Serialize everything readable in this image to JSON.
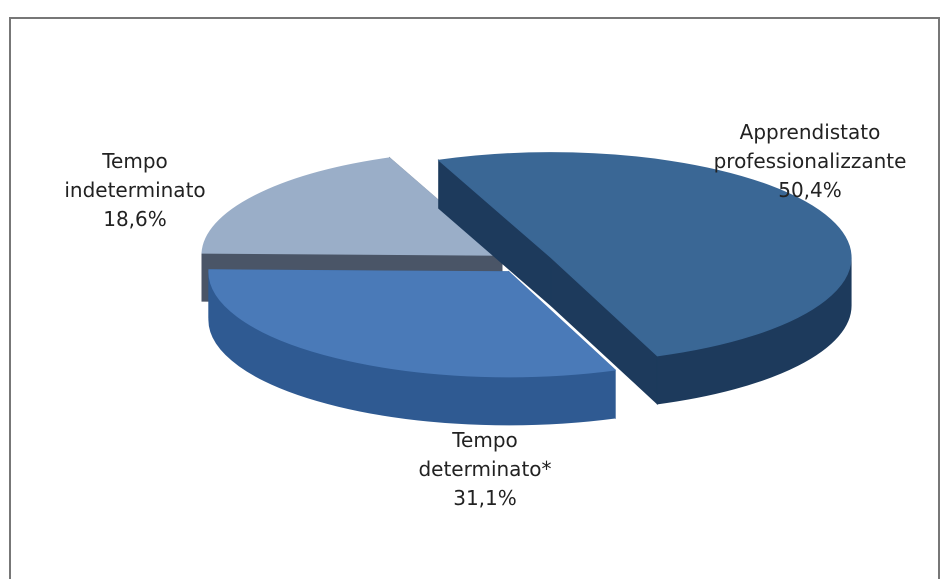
{
  "chart_data": {
    "type": "pie3d",
    "categories": [
      "Apprendistato professionalizzante",
      "Tempo determinato*",
      "Tempo indeterminato"
    ],
    "values": [
      50.4,
      31.1,
      18.6
    ],
    "value_labels": [
      "50,4%",
      "31,1%",
      "18,6%"
    ],
    "colors": [
      "#3a6795",
      "#4a7ab8",
      "#9aaec8"
    ],
    "side_colors": [
      "#1d3a5c",
      "#2f5a92",
      "#4a5567"
    ]
  }
}
